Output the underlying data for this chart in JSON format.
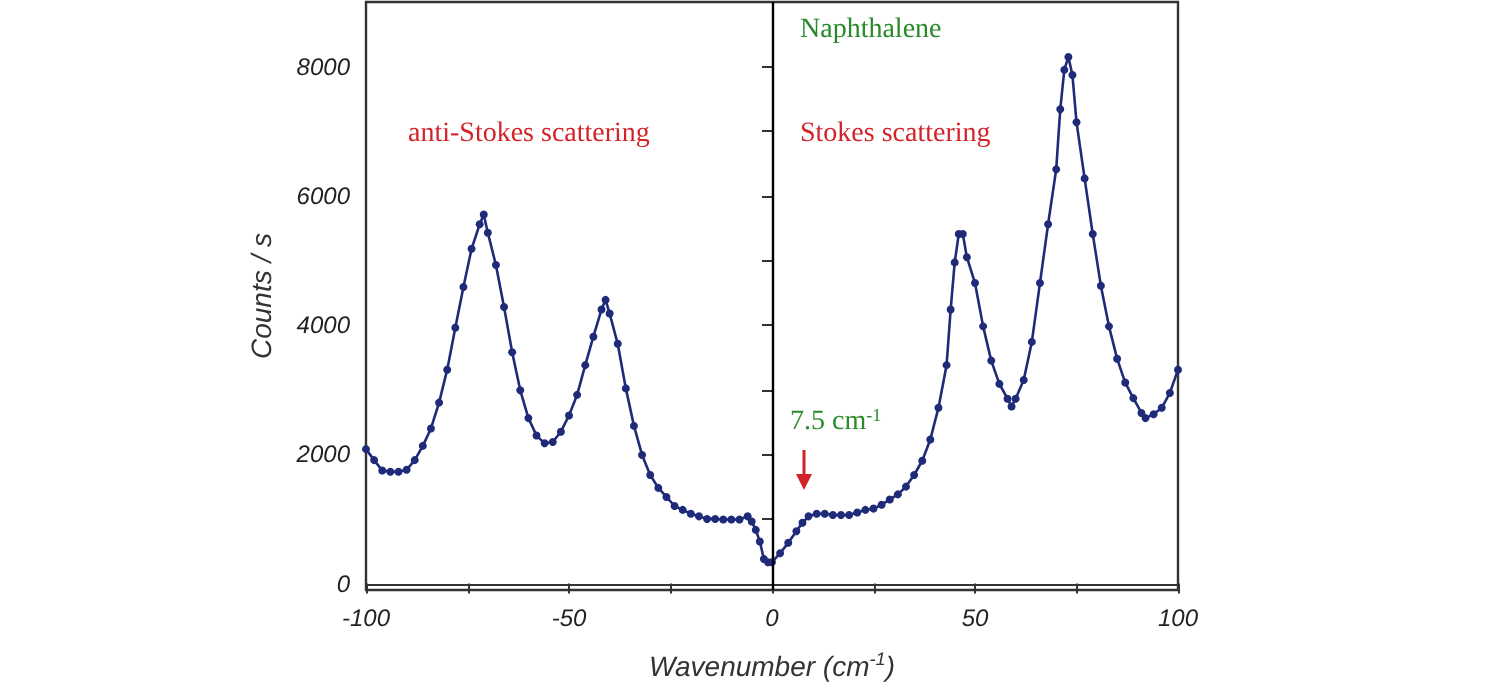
{
  "chart_data": {
    "type": "line",
    "xlabel": "Wavenumber (cm$^{-1}$)",
    "ylabel": "Counts / s",
    "annotations": [
      "Naphthalene",
      "anti-Stokes scattering",
      "Stokes scattering",
      "7.5 cm$^{-1}$"
    ],
    "xlim": [
      -100,
      100
    ],
    "xticks": [
      -100,
      {
        "value": -75,
        "label": null
      },
      -50,
      {
        "value": -25,
        "label": null
      },
      0,
      {
        "value": 25,
        "label": null
      },
      50,
      {
        "value": 75,
        "label": null
      },
      100
    ],
    "ylim": [
      -100,
      9000
    ],
    "yticks": [
      0,
      {
        "value": 1000,
        "label": null
      },
      2000,
      {
        "value": 3000,
        "label": null
      },
      4000,
      {
        "value": 5000,
        "label": null
      },
      6000,
      {
        "value": 7000,
        "label": null
      },
      8000
    ],
    "ref_lines": [
      {
        "axis": "x",
        "value": 0,
        "color": "#000000",
        "line_style": "solid"
      }
    ],
    "grid": false,
    "marker": "circle",
    "line_style": "solid",
    "series": [
      {
        "color": "#1f2a78",
        "x": [
          -100,
          -98,
          -96,
          -94,
          -92,
          -90,
          -88,
          -86,
          -84,
          -82,
          -80,
          -78,
          -76,
          -74,
          -72,
          -71,
          -70,
          -68,
          -66,
          -64,
          -62,
          -60,
          -58,
          -56,
          -54,
          -52,
          -50,
          -48,
          -46,
          -44,
          -42,
          -41,
          -40,
          -38,
          -36,
          -34,
          -32,
          -30,
          -28,
          -26,
          -24,
          -22,
          -20,
          -18,
          -16,
          -14,
          -12,
          -10,
          -8,
          -6,
          -5,
          -4,
          -3,
          -2,
          -1,
          0,
          2,
          4,
          6,
          7.5,
          9,
          11,
          13,
          15,
          17,
          19,
          21,
          23,
          25,
          27,
          29,
          31,
          33,
          35,
          37,
          39,
          41,
          43,
          44,
          45,
          46,
          47,
          48,
          50,
          52,
          54,
          56,
          58,
          59,
          60,
          62,
          64,
          66,
          68,
          70,
          71,
          72,
          73,
          74,
          75,
          77,
          79,
          81,
          83,
          85,
          87,
          89,
          91,
          92,
          94,
          96,
          98,
          100
        ],
        "values": [
          2080,
          1910,
          1750,
          1730,
          1730,
          1760,
          1910,
          2130,
          2400,
          2800,
          3310,
          3960,
          4590,
          5180,
          5560,
          5710,
          5430,
          4930,
          4280,
          3580,
          2990,
          2560,
          2290,
          2170,
          2190,
          2350,
          2600,
          2920,
          3380,
          3820,
          4240,
          4390,
          4180,
          3710,
          3020,
          2440,
          1990,
          1680,
          1480,
          1340,
          1200,
          1140,
          1080,
          1040,
          1000,
          1000,
          990,
          990,
          990,
          1040,
          960,
          830,
          650,
          380,
          330,
          330,
          470,
          630,
          810,
          940,
          1040,
          1080,
          1080,
          1060,
          1060,
          1060,
          1100,
          1140,
          1160,
          1220,
          1300,
          1380,
          1500,
          1680,
          1900,
          2230,
          2720,
          3380,
          4240,
          4970,
          5410,
          5410,
          5050,
          4650,
          3980,
          3450,
          3090,
          2860,
          2740,
          2860,
          3150,
          3740,
          4650,
          5560,
          6410,
          7340,
          7950,
          8150,
          7870,
          7140,
          6270,
          5410,
          4610,
          3980,
          3480,
          3110,
          2870,
          2640,
          2560,
          2620,
          2720,
          2950,
          3310
        ]
      }
    ]
  }
}
